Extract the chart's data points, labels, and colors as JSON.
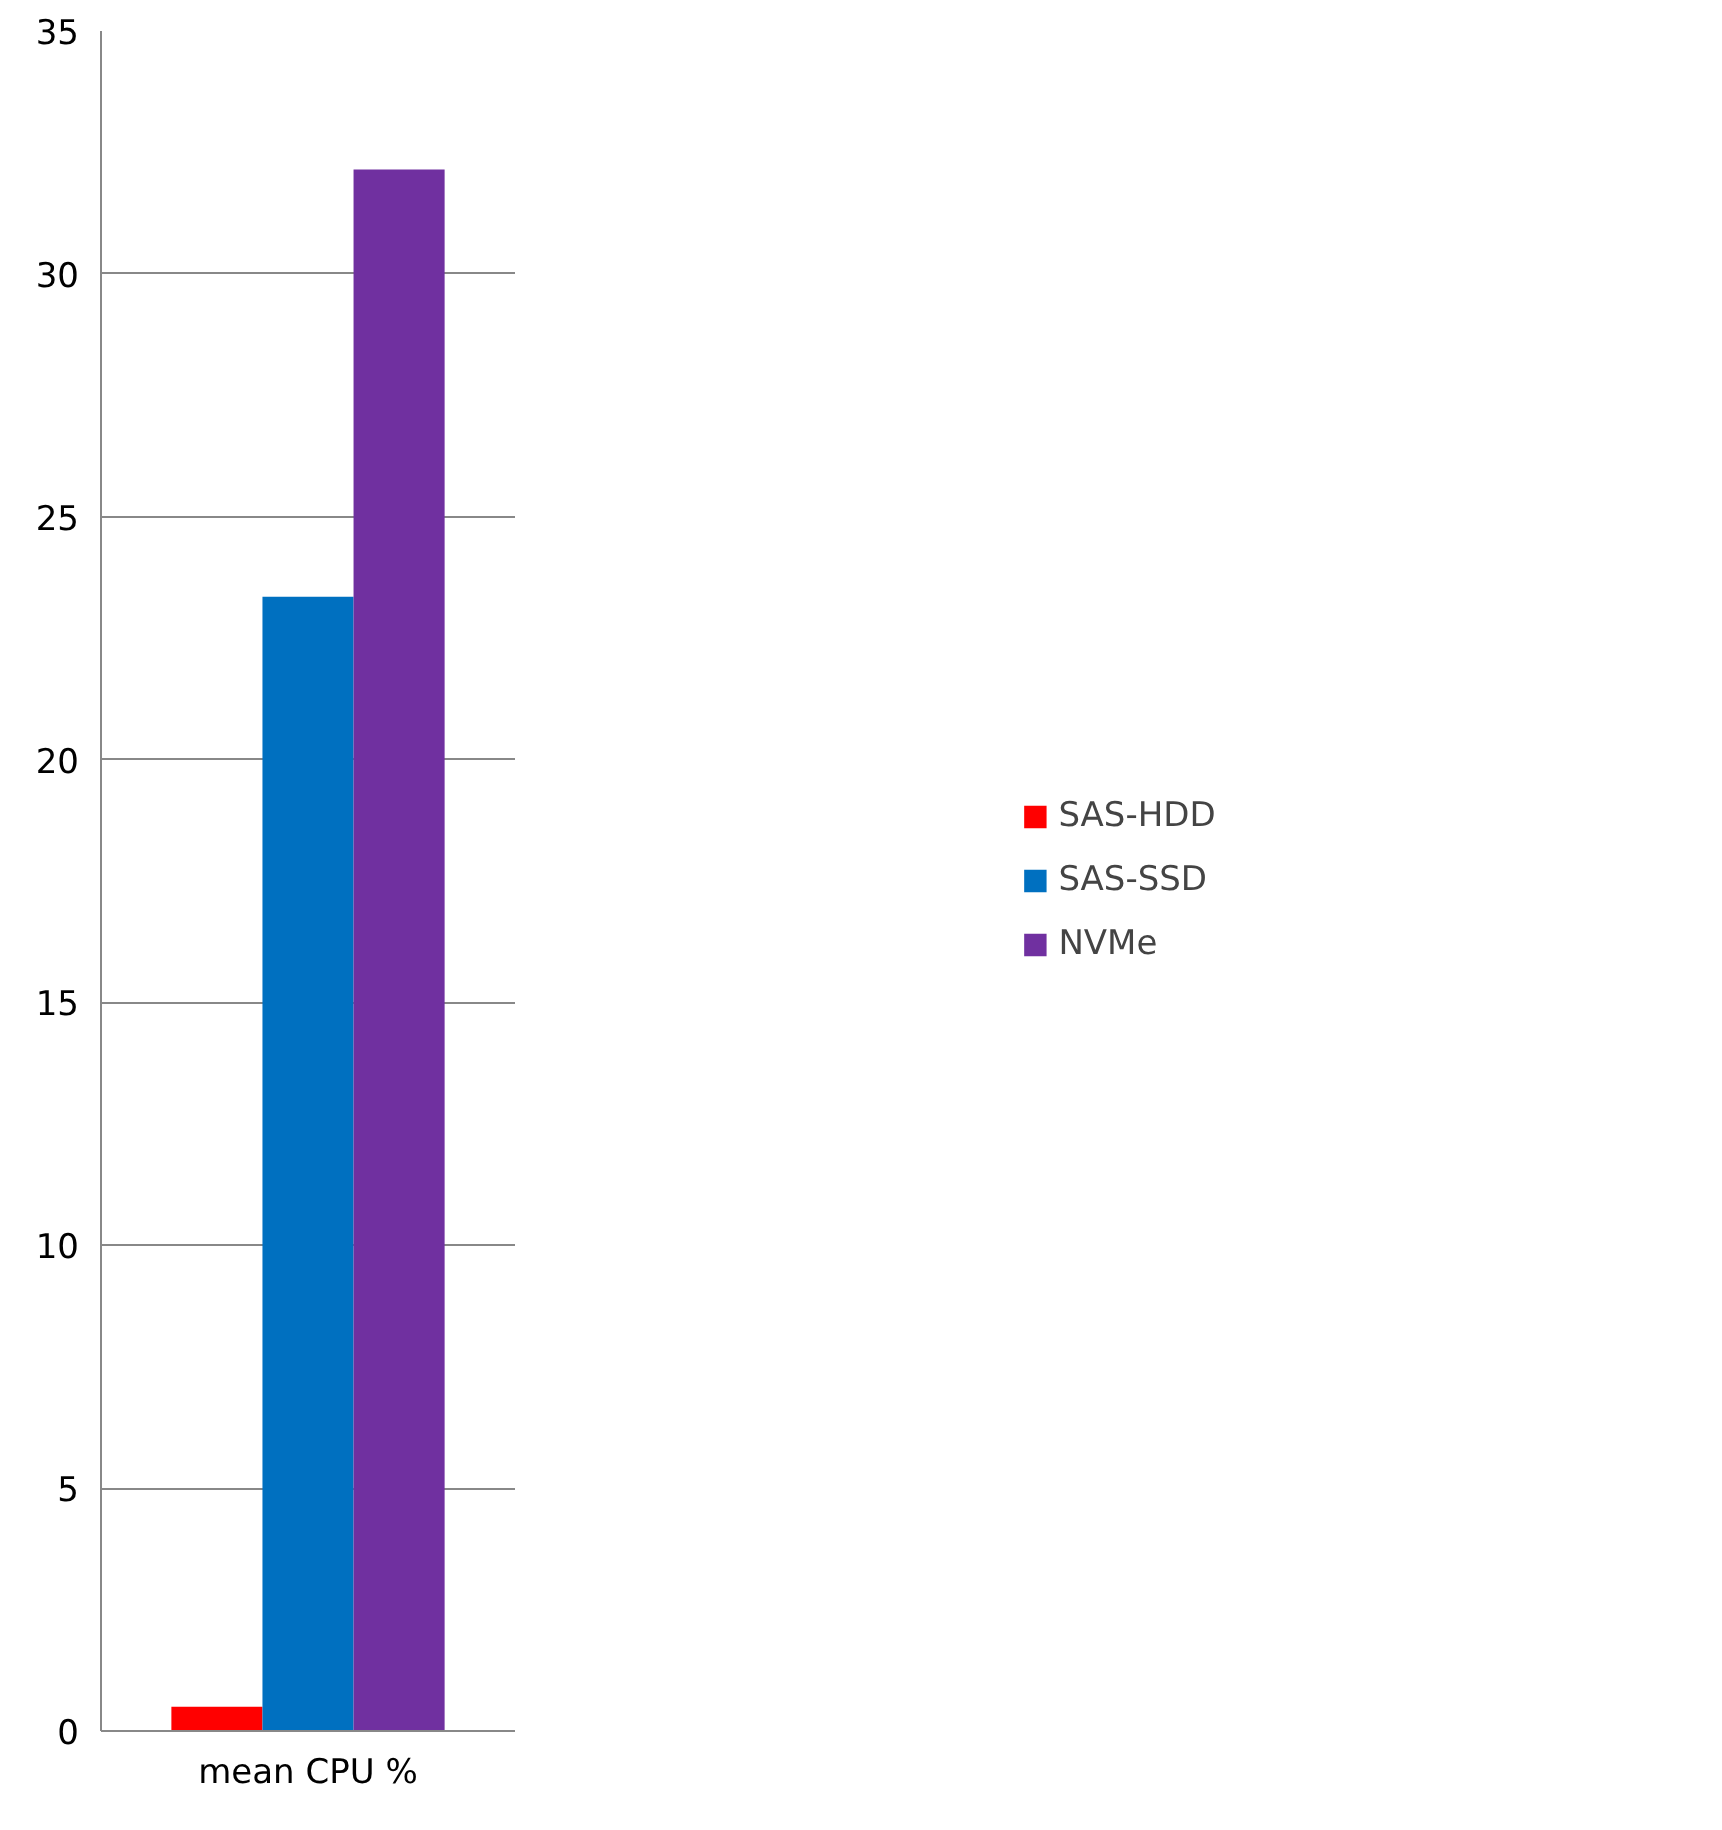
{
  "chart_data": {
    "type": "bar",
    "categories": [
      "mean CPU %"
    ],
    "series": [
      {
        "name": "SAS-HDD",
        "color": "#ff0000",
        "values": [
          0.5
        ]
      },
      {
        "name": "SAS-SSD",
        "color": "#0070c0",
        "values": [
          23.35
        ]
      },
      {
        "name": "NVMe",
        "color": "#7030a0",
        "values": [
          32.15
        ]
      }
    ],
    "ylim": [
      0,
      35
    ],
    "yticks": [
      0,
      5,
      10,
      15,
      20,
      25,
      30,
      35
    ],
    "grid": "y",
    "legend": "right"
  }
}
